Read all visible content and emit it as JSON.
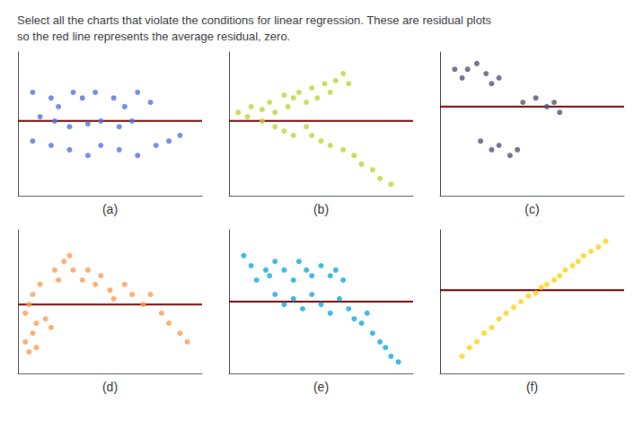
{
  "title": "Select all the charts that violate the conditions for linear regression. These are residual plots\nso the red line represents the average residual, zero.",
  "chart_data": [
    {
      "type": "scatter",
      "title": "(a)",
      "xlim": [
        0,
        1
      ],
      "ylim": [
        0,
        1
      ],
      "xticks": [],
      "yticks": [],
      "tick_labels": false,
      "grid": false,
      "series": [
        {
          "type": "scatter",
          "x": [
            0.08,
            0.18,
            0.22,
            0.3,
            0.35,
            0.42,
            0.52,
            0.58,
            0.65,
            0.72,
            0.12,
            0.2,
            0.28,
            0.38,
            0.45,
            0.55,
            0.62,
            0.08,
            0.18,
            0.28,
            0.38,
            0.45,
            0.55,
            0.65,
            0.75,
            0.82,
            0.88
          ],
          "values": [
            0.72,
            0.68,
            0.62,
            0.72,
            0.68,
            0.72,
            0.68,
            0.62,
            0.72,
            0.65,
            0.55,
            0.52,
            0.48,
            0.5,
            0.52,
            0.48,
            0.52,
            0.38,
            0.35,
            0.32,
            0.28,
            0.35,
            0.32,
            0.28,
            0.35,
            0.38,
            0.42
          ]
        },
        {
          "type": "line",
          "color": "#7a0000",
          "x": [
            0,
            1
          ],
          "values": [
            0.52,
            0.52
          ]
        }
      ]
    },
    {
      "type": "scatter",
      "title": "(b)",
      "xlim": [
        0,
        1
      ],
      "ylim": [
        0,
        1
      ],
      "xticks": [],
      "yticks": [],
      "tick_labels": false,
      "grid": false,
      "series": [
        {
          "type": "scatter",
          "x": [
            0.05,
            0.1,
            0.12,
            0.18,
            0.22,
            0.25,
            0.3,
            0.32,
            0.35,
            0.38,
            0.42,
            0.45,
            0.48,
            0.52,
            0.55,
            0.58,
            0.62,
            0.65,
            0.18,
            0.25,
            0.3,
            0.35,
            0.42,
            0.45,
            0.5,
            0.55,
            0.62,
            0.68,
            0.72,
            0.78,
            0.82,
            0.88
          ],
          "values": [
            0.58,
            0.55,
            0.62,
            0.6,
            0.65,
            0.58,
            0.7,
            0.62,
            0.68,
            0.72,
            0.65,
            0.75,
            0.68,
            0.78,
            0.72,
            0.8,
            0.85,
            0.78,
            0.52,
            0.48,
            0.45,
            0.42,
            0.48,
            0.42,
            0.38,
            0.35,
            0.32,
            0.28,
            0.22,
            0.18,
            0.12,
            0.08
          ]
        },
        {
          "type": "line",
          "color": "#7a0000",
          "x": [
            0,
            1
          ],
          "values": [
            0.52,
            0.52
          ]
        }
      ]
    },
    {
      "type": "scatter",
      "title": "(c)",
      "xlim": [
        0,
        1
      ],
      "ylim": [
        0,
        1
      ],
      "xticks": [],
      "yticks": [],
      "tick_labels": false,
      "grid": false,
      "series": [
        {
          "type": "scatter",
          "x": [
            0.08,
            0.12,
            0.15,
            0.2,
            0.25,
            0.28,
            0.32,
            0.45,
            0.52,
            0.58,
            0.62,
            0.65,
            0.22,
            0.28,
            0.32,
            0.38,
            0.42
          ],
          "values": [
            0.88,
            0.82,
            0.88,
            0.92,
            0.85,
            0.78,
            0.82,
            0.65,
            0.68,
            0.62,
            0.65,
            0.58,
            0.38,
            0.32,
            0.35,
            0.28,
            0.32
          ]
        },
        {
          "type": "line",
          "color": "#7a0000",
          "x": [
            0,
            1
          ],
          "values": [
            0.62,
            0.62
          ]
        }
      ]
    },
    {
      "type": "scatter",
      "title": "(d)",
      "xlim": [
        0,
        1
      ],
      "ylim": [
        0,
        1
      ],
      "xticks": [],
      "yticks": [],
      "tick_labels": false,
      "grid": false,
      "series": [
        {
          "type": "scatter",
          "x": [
            0.04,
            0.06,
            0.08,
            0.1,
            0.1,
            0.04,
            0.06,
            0.08,
            0.12,
            0.15,
            0.18,
            0.2,
            0.22,
            0.25,
            0.28,
            0.3,
            0.35,
            0.38,
            0.42,
            0.45,
            0.5,
            0.52,
            0.58,
            0.62,
            0.68,
            0.72,
            0.78,
            0.82,
            0.88,
            0.92
          ],
          "values": [
            0.22,
            0.15,
            0.28,
            0.18,
            0.35,
            0.42,
            0.48,
            0.55,
            0.62,
            0.38,
            0.32,
            0.72,
            0.65,
            0.78,
            0.82,
            0.72,
            0.65,
            0.72,
            0.62,
            0.68,
            0.58,
            0.52,
            0.62,
            0.55,
            0.48,
            0.55,
            0.42,
            0.35,
            0.28,
            0.22
          ]
        },
        {
          "type": "line",
          "color": "#7a0000",
          "x": [
            0,
            1
          ],
          "values": [
            0.48,
            0.48
          ]
        }
      ]
    },
    {
      "type": "scatter",
      "title": "(e)",
      "xlim": [
        0,
        1
      ],
      "ylim": [
        0,
        1
      ],
      "xticks": [],
      "yticks": [],
      "tick_labels": false,
      "grid": false,
      "series": [
        {
          "type": "scatter",
          "x": [
            0.08,
            0.12,
            0.2,
            0.25,
            0.15,
            0.22,
            0.3,
            0.35,
            0.38,
            0.42,
            0.45,
            0.5,
            0.55,
            0.58,
            0.62,
            0.25,
            0.3,
            0.35,
            0.4,
            0.45,
            0.5,
            0.55,
            0.6,
            0.65,
            0.68,
            0.72,
            0.75,
            0.78,
            0.82,
            0.85,
            0.88,
            0.92
          ],
          "values": [
            0.82,
            0.75,
            0.72,
            0.78,
            0.65,
            0.68,
            0.72,
            0.65,
            0.78,
            0.72,
            0.68,
            0.75,
            0.68,
            0.72,
            0.65,
            0.55,
            0.48,
            0.52,
            0.45,
            0.55,
            0.48,
            0.42,
            0.52,
            0.45,
            0.38,
            0.35,
            0.42,
            0.28,
            0.22,
            0.18,
            0.12,
            0.08
          ]
        },
        {
          "type": "line",
          "color": "#7a0000",
          "x": [
            0,
            1
          ],
          "values": [
            0.5,
            0.5
          ]
        }
      ]
    },
    {
      "type": "scatter",
      "title": "(f)",
      "xlim": [
        0,
        1
      ],
      "ylim": [
        0,
        1
      ],
      "xticks": [],
      "yticks": [],
      "tick_labels": false,
      "grid": false,
      "series": [
        {
          "type": "scatter",
          "x": [
            0.12,
            0.16,
            0.2,
            0.24,
            0.28,
            0.32,
            0.36,
            0.4,
            0.44,
            0.48,
            0.52,
            0.55,
            0.58,
            0.62,
            0.65,
            0.68,
            0.72,
            0.75,
            0.78,
            0.82,
            0.86,
            0.9
          ],
          "values": [
            0.12,
            0.18,
            0.22,
            0.28,
            0.32,
            0.38,
            0.42,
            0.46,
            0.5,
            0.54,
            0.56,
            0.6,
            0.62,
            0.65,
            0.68,
            0.72,
            0.75,
            0.78,
            0.82,
            0.85,
            0.88,
            0.92
          ]
        },
        {
          "type": "line",
          "color": "#7a0000",
          "x": [
            0,
            1
          ],
          "values": [
            0.58,
            0.58
          ]
        }
      ]
    }
  ]
}
